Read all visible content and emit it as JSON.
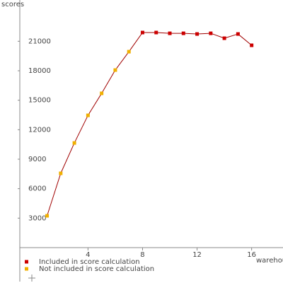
{
  "chart_data": {
    "type": "line",
    "y_label": "scores",
    "x_label": "warehouses",
    "x": [
      1,
      2,
      3,
      4,
      5,
      6,
      7,
      8,
      9,
      10,
      11,
      12,
      13,
      14,
      15,
      16
    ],
    "series": [
      {
        "name": "Included in score calculation",
        "color": "#cc0000",
        "values": [
          null,
          null,
          null,
          null,
          null,
          null,
          null,
          21890,
          21890,
          21810,
          21810,
          21740,
          21810,
          21310,
          21740,
          20590
        ]
      },
      {
        "name": "Not included in score calculation",
        "color": "#f0b000",
        "values": [
          3240,
          7560,
          10650,
          13460,
          15700,
          18070,
          19940,
          null,
          null,
          null,
          null,
          null,
          null,
          null,
          null,
          null
        ]
      }
    ],
    "line_color": "#a00000",
    "xlim": [
      -1,
      18.3
    ],
    "xticks": [
      4,
      8,
      12,
      16
    ],
    "ylim": [
      0,
      25200
    ],
    "yticks": [
      3000,
      6000,
      9000,
      12000,
      15000,
      18000,
      21000
    ]
  }
}
